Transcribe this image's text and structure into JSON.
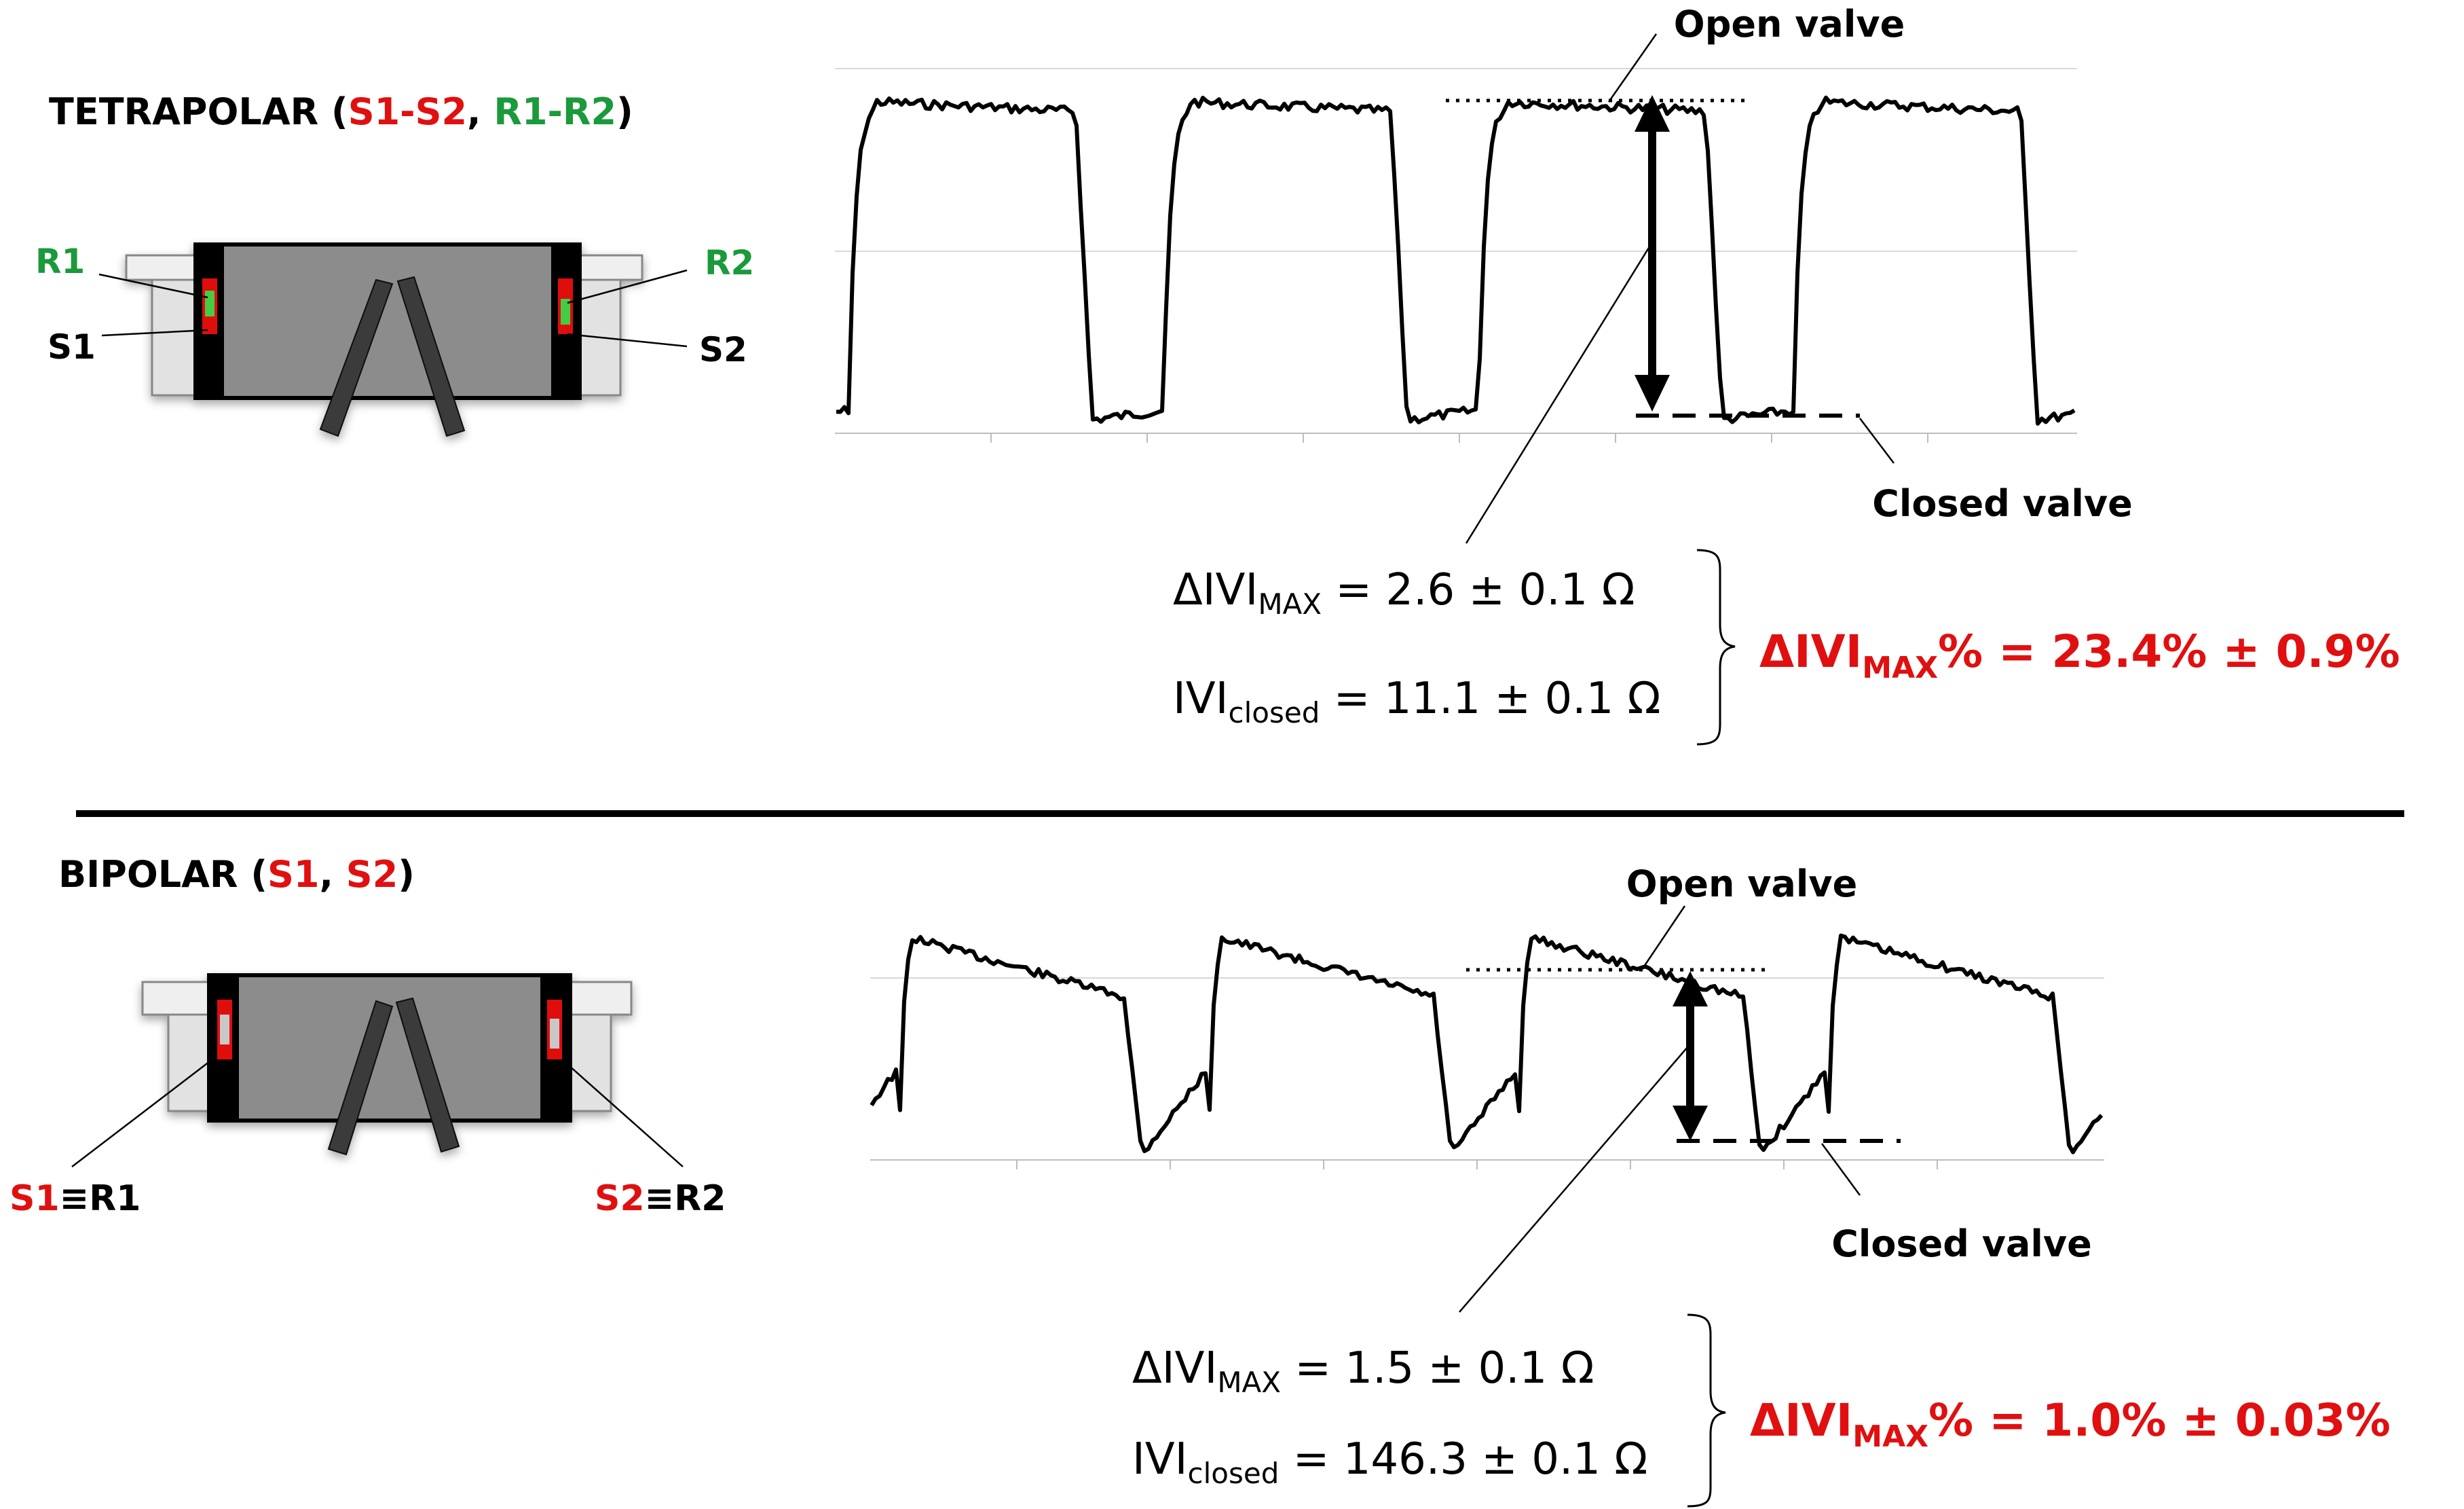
{
  "colors": {
    "red": "#e01010",
    "green": "#1a9a3a",
    "black": "#000000"
  },
  "panels": [
    {
      "heading": {
        "name": "TETRAPOLAR",
        "open": " (",
        "part1": "S1-S2",
        "sep": ", ",
        "part2": "R1-R2",
        "close": ")",
        "part1_color": "red",
        "part2_color": "green"
      },
      "device_labels": {
        "left_top": "R1",
        "left_bottom": "S1",
        "right_top": "R2",
        "right_bottom": "S2"
      },
      "annotations": {
        "open": "Open valve",
        "closed": "Closed valve"
      },
      "formula_max": {
        "pre": "ΔIVI",
        "sub": "MAX",
        "post": " = 2.6 ± 0.1 Ω"
      },
      "formula_closed": {
        "pre": "IVI",
        "sub": "closed",
        "post": " = 11.1 ± 0.1 Ω"
      },
      "result": {
        "pre": "ΔIVI",
        "sub": "MAX",
        "post": "% = 23.4% ± 0.9%"
      }
    },
    {
      "heading": {
        "name": "BIPOLAR",
        "open": " (",
        "part1": "S1",
        "sep": ", ",
        "part2": "S2",
        "close": ")",
        "part1_color": "red",
        "part2_color": "red"
      },
      "device_labels": {
        "left_red": "S1",
        "left_black": "≡R1",
        "right_red": "S2",
        "right_black": "≡R2"
      },
      "annotations": {
        "open": "Open valve",
        "closed": "Closed valve"
      },
      "formula_max": {
        "pre": "ΔIVI",
        "sub": "MAX",
        "post": " = 1.5 ± 0.1 Ω"
      },
      "formula_closed": {
        "pre": "IVI",
        "sub": "closed",
        "post": " = 146.3 ± 0.1 Ω"
      },
      "result": {
        "pre": "ΔIVI",
        "sub": "MAX",
        "post": "% = 1.0% ± 0.03%"
      }
    }
  ]
}
